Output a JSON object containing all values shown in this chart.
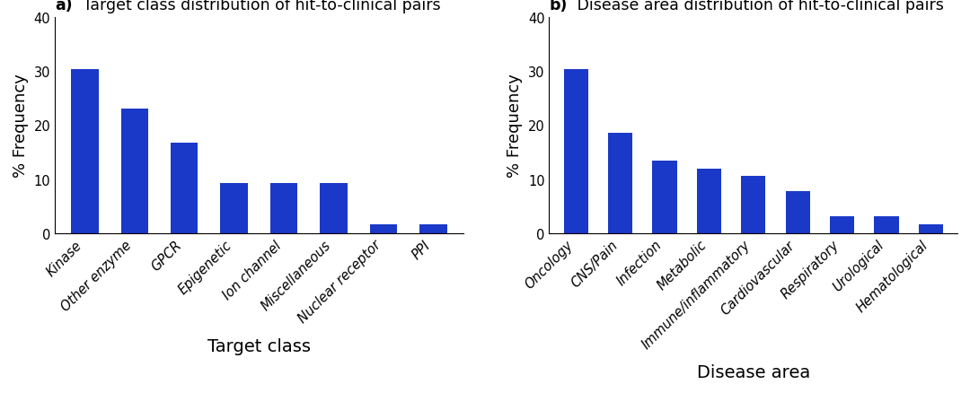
{
  "panel_a": {
    "title": " Target class distribution of hit-to-clinical pairs",
    "title_prefix": "a)",
    "categories": [
      "Kinase",
      "Other enzyme",
      "GPCR",
      "Epigenetic",
      "Ion channel",
      "Miscellaneous",
      "Nuclear receptor",
      "PPI"
    ],
    "values": [
      30.4,
      23.0,
      16.7,
      9.3,
      9.3,
      9.3,
      1.7,
      1.7
    ],
    "xlabel": "Target class",
    "ylabel": "% Frequency",
    "ylim": [
      0,
      40
    ],
    "yticks": [
      0,
      10,
      20,
      30,
      40
    ]
  },
  "panel_b": {
    "title": " Disease area distribution of hit-to-clinical pairs",
    "title_prefix": "b)",
    "categories": [
      "Oncology",
      "CNS/Pain",
      "Infection",
      "Metabolic",
      "Immune/inflammatory",
      "Cardiovascular",
      "Respiratory",
      "Urological",
      "Hematological"
    ],
    "values": [
      30.4,
      18.5,
      13.5,
      12.0,
      10.6,
      7.8,
      3.1,
      3.1,
      1.7
    ],
    "xlabel": "Disease area",
    "ylabel": "% Frequency",
    "ylim": [
      0,
      40
    ],
    "yticks": [
      0,
      10,
      20,
      30,
      40
    ]
  },
  "bar_color": "#1a39c8",
  "background_color": "#ffffff",
  "title_fontsize": 12.5,
  "label_fontsize": 13,
  "tick_fontsize": 10.5,
  "xlabel_fontsize": 14
}
